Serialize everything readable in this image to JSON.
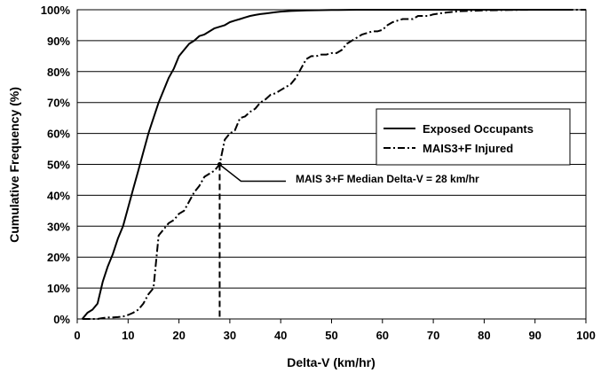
{
  "chart_data": {
    "type": "line",
    "title": "",
    "xlabel": "Delta-V (km/hr)",
    "ylabel": "Cumulative Frequency (%)",
    "xlim": [
      0,
      100
    ],
    "ylim": [
      0,
      100
    ],
    "xticks": [
      0,
      10,
      20,
      30,
      40,
      50,
      60,
      70,
      80,
      90,
      100
    ],
    "yticks": [
      "0%",
      "10%",
      "20%",
      "30%",
      "40%",
      "50%",
      "60%",
      "70%",
      "80%",
      "90%",
      "100%"
    ],
    "grid": "horizontal",
    "legend_position": "right",
    "series": [
      {
        "name": "Exposed Occupants",
        "style": "solid",
        "color": "#000000",
        "x": [
          1,
          2,
          3,
          4,
          5,
          6,
          7,
          8,
          9,
          10,
          11,
          12,
          13,
          14,
          15,
          16,
          17,
          18,
          19,
          20,
          21,
          22,
          23,
          24,
          25,
          26,
          27,
          28,
          29,
          30,
          31,
          32,
          33,
          34,
          35,
          36,
          37,
          38,
          39,
          40,
          42,
          45,
          50,
          55,
          60,
          70,
          80,
          96
        ],
        "y": [
          0,
          2,
          3,
          5,
          12,
          17,
          21,
          26,
          30,
          36,
          42,
          48,
          54,
          60,
          65,
          70,
          74,
          78,
          81,
          85,
          87,
          89,
          90,
          91.5,
          92,
          93,
          94,
          94.5,
          95,
          96,
          96.5,
          97,
          97.5,
          98,
          98.3,
          98.6,
          98.8,
          99,
          99.2,
          99.4,
          99.6,
          99.8,
          99.9,
          100,
          100,
          100,
          100,
          100
        ]
      },
      {
        "name": "MAIS3+F Injured",
        "style": "dash-dot",
        "color": "#000000",
        "x": [
          1,
          2,
          3,
          4,
          5,
          6,
          7,
          8,
          9,
          10,
          11,
          12,
          13,
          14,
          15,
          16,
          17,
          18,
          19,
          20,
          21,
          22,
          23,
          24,
          25,
          26,
          27,
          28,
          29,
          30,
          31,
          32,
          33,
          34,
          35,
          36,
          37,
          38,
          39,
          40,
          41,
          42,
          43,
          44,
          45,
          46,
          47,
          48,
          49,
          50,
          51,
          52,
          53,
          54,
          55,
          56,
          57,
          58,
          59,
          60,
          61,
          62,
          63,
          64,
          65,
          66,
          67,
          68,
          69,
          70,
          72,
          75,
          80,
          85,
          90,
          95,
          100
        ],
        "y": [
          0,
          0,
          0,
          0,
          0.3,
          0.5,
          0.5,
          0.6,
          0.8,
          1.3,
          2,
          3,
          5,
          8,
          10,
          27,
          29,
          31,
          32,
          34,
          35,
          38,
          41,
          43,
          46,
          47,
          48,
          50,
          58,
          60,
          61,
          65,
          65.5,
          67,
          68,
          70,
          71,
          72.5,
          73,
          74,
          75,
          76,
          78,
          81,
          84,
          85,
          85,
          85.5,
          85.5,
          86,
          86,
          87,
          89,
          90,
          91,
          92,
          92.5,
          93,
          93,
          93.5,
          95,
          96,
          96.5,
          97,
          97,
          97,
          98,
          98,
          98,
          98.5,
          99,
          99.5,
          99.8,
          99.9,
          100,
          100,
          100
        ]
      }
    ],
    "annotation": {
      "text": "MAIS 3+F Median Delta-V = 28 km/hr",
      "x": 28,
      "y": 50
    }
  }
}
